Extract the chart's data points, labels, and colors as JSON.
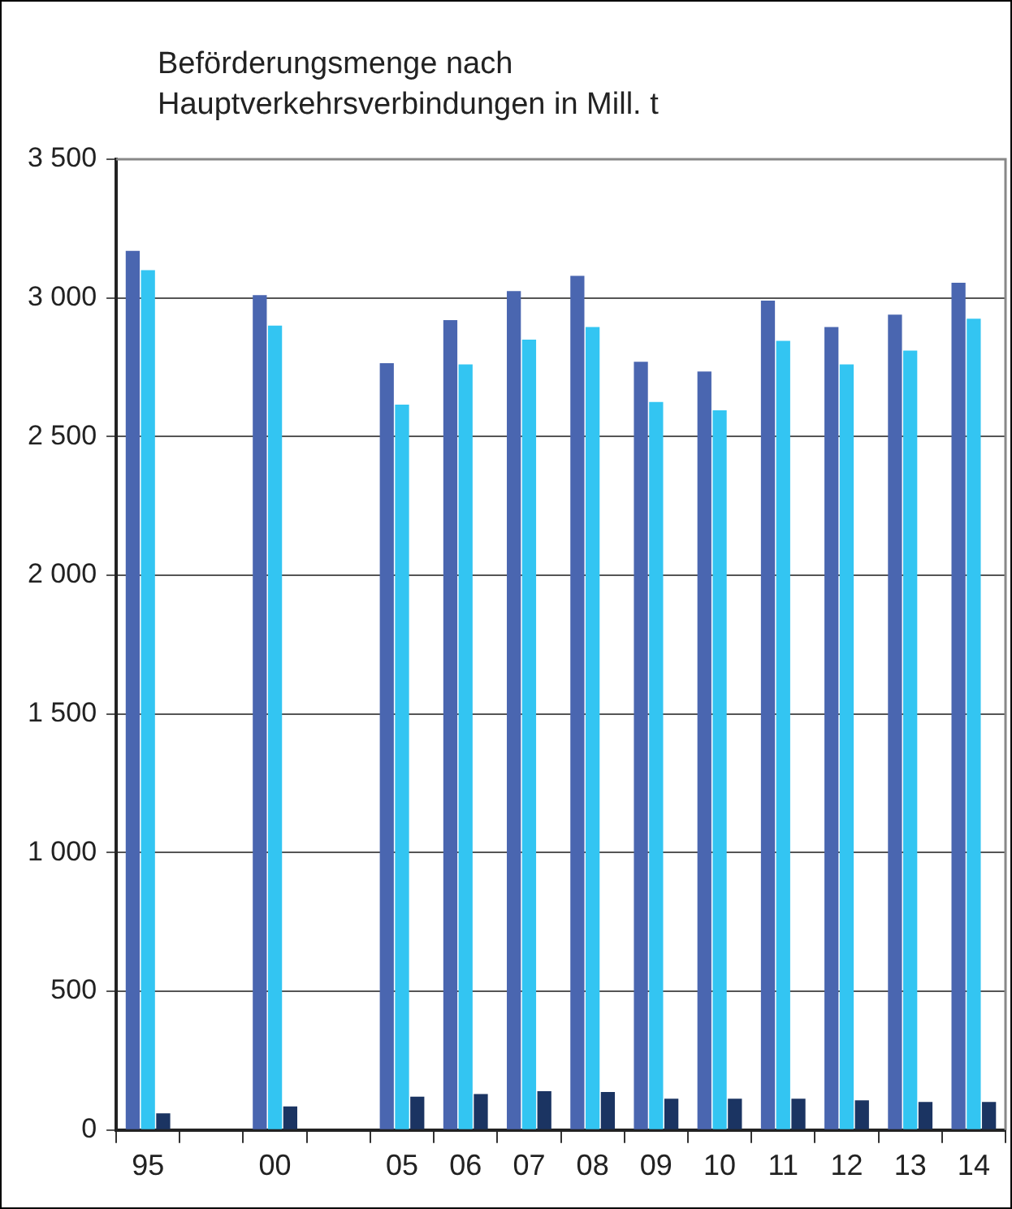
{
  "chart_data": {
    "type": "bar",
    "title": "Beförderungsmenge nach\nHauptverkehrsverbindungen in Mill. t",
    "categories": [
      "95",
      null,
      "00",
      null,
      "05",
      "06",
      "07",
      "08",
      "09",
      "10",
      "11",
      "12",
      "13",
      "14"
    ],
    "series": [
      {
        "color": "#4a66b0",
        "values": [
          3170,
          null,
          3010,
          null,
          2765,
          2920,
          3025,
          3080,
          2770,
          2735,
          2990,
          2895,
          2940,
          3055
        ]
      },
      {
        "color": "#33c5f2",
        "values": [
          3100,
          null,
          2900,
          null,
          2615,
          2760,
          2850,
          2895,
          2625,
          2595,
          2845,
          2760,
          2810,
          2925
        ]
      },
      {
        "color": "#1b3462",
        "values": [
          60,
          null,
          85,
          null,
          120,
          130,
          140,
          137,
          113,
          113,
          113,
          107,
          101,
          101
        ]
      }
    ],
    "ylim": [
      0,
      3500
    ],
    "yticks": [
      0,
      500,
      {
        "value": 1000,
        "label": "1 000"
      },
      {
        "value": 1500,
        "label": "1 500"
      },
      {
        "value": 2000,
        "label": "2 000"
      },
      {
        "value": 2500,
        "label": "2 500"
      },
      {
        "value": 3000,
        "label": "3 000"
      },
      {
        "value": 3500,
        "label": "3 500"
      }
    ],
    "grid": "y",
    "legend": false
  }
}
